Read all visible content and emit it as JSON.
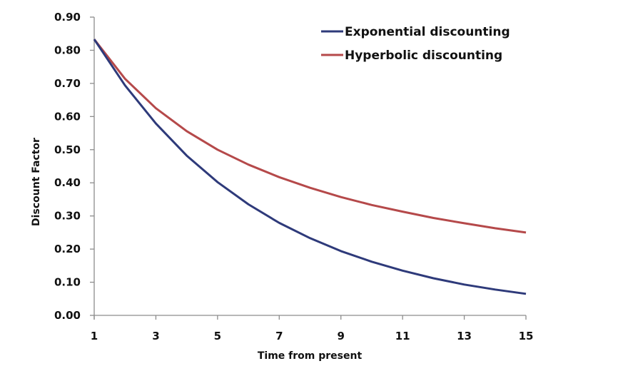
{
  "chart_data": {
    "type": "line",
    "title": "",
    "xlabel": "Time from present",
    "ylabel": "Discount Factor",
    "x": [
      1,
      2,
      3,
      4,
      5,
      6,
      7,
      8,
      9,
      10,
      11,
      12,
      13,
      14,
      15
    ],
    "xticks": [
      1,
      3,
      5,
      7,
      9,
      11,
      13,
      15
    ],
    "xlim": [
      1,
      15
    ],
    "yticks": [
      "0.00",
      "0.10",
      "0.20",
      "0.30",
      "0.40",
      "0.50",
      "0.60",
      "0.70",
      "0.80",
      "0.90"
    ],
    "ylim": [
      0,
      0.9
    ],
    "grid": false,
    "legend_position": "top-right",
    "series": [
      {
        "name": "Exponential discounting",
        "color": "#2e3a7a",
        "values": [
          0.833,
          0.694,
          0.579,
          0.482,
          0.402,
          0.335,
          0.279,
          0.233,
          0.194,
          0.162,
          0.135,
          0.112,
          0.093,
          0.078,
          0.065
        ]
      },
      {
        "name": "Hyperbolic discounting",
        "color": "#b5494a",
        "values": [
          0.833,
          0.714,
          0.625,
          0.556,
          0.5,
          0.455,
          0.417,
          0.385,
          0.357,
          0.333,
          0.313,
          0.294,
          0.278,
          0.263,
          0.25
        ]
      }
    ]
  },
  "legend": {
    "items": [
      {
        "label": "Exponential discounting",
        "color": "#2e3a7a"
      },
      {
        "label": "Hyperbolic discounting",
        "color": "#b5494a"
      }
    ]
  },
  "axes": {
    "xlabel": "Time from present",
    "ylabel": "Discount Factor"
  }
}
